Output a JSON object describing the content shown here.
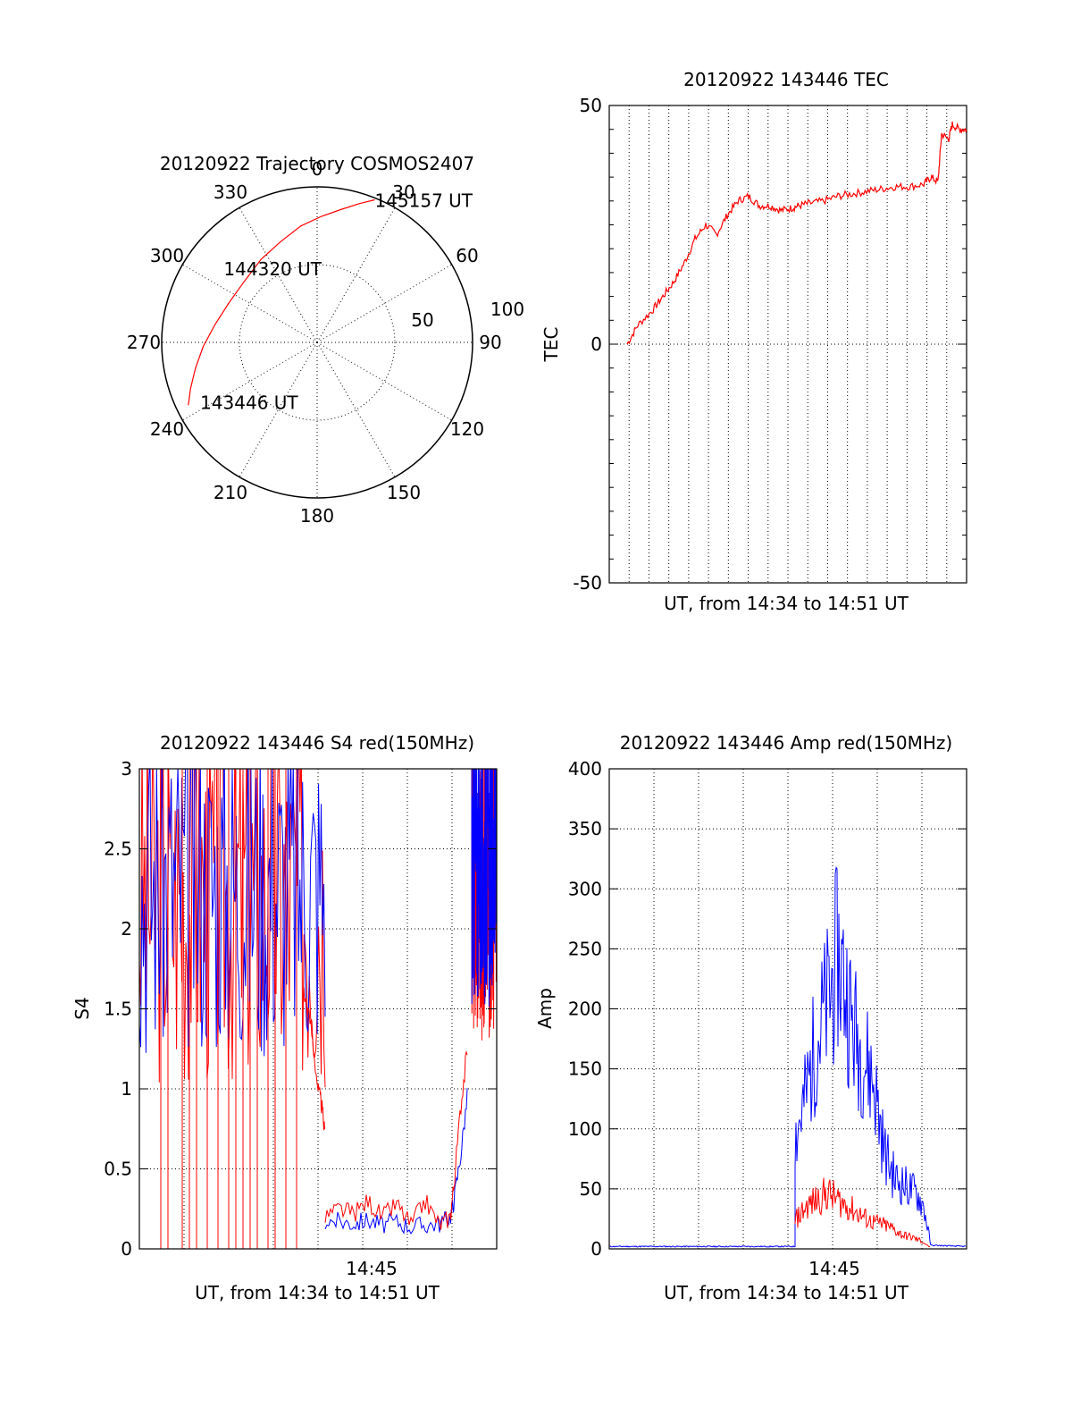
{
  "colors": {
    "red": "#ff0000",
    "blue": "#0000ff",
    "axis": "#000000"
  },
  "chart_data": [
    {
      "type": "polar",
      "title": "20120922 Trajectory COSMOS2407",
      "angle_labels": [
        "0",
        "30",
        "60",
        "90",
        "120",
        "150",
        "180",
        "210",
        "240",
        "270",
        "300",
        "330"
      ],
      "ring_labels": [
        "50",
        "100"
      ],
      "series": [
        {
          "color": "#ff0000",
          "points": [
            {
              "az": 244,
              "zen": 83
            },
            {
              "az": 250,
              "zen": 78
            },
            {
              "az": 258,
              "zen": 72
            },
            {
              "az": 268,
              "zen": 66
            },
            {
              "az": 280,
              "zen": 60
            },
            {
              "az": 294,
              "zen": 56
            },
            {
              "az": 310,
              "zen": 55
            },
            {
              "az": 326,
              "zen": 58
            },
            {
              "az": 340,
              "zen": 62
            },
            {
              "az": 352,
              "zen": 68
            },
            {
              "az": 2,
              "zen": 73
            },
            {
              "az": 10,
              "zen": 78
            },
            {
              "az": 17,
              "zen": 84
            },
            {
              "az": 22,
              "zen": 89
            }
          ]
        }
      ],
      "annotations": [
        {
          "text": "145157 UT",
          "az": 22,
          "zen": 89
        },
        {
          "text": "144320 UT",
          "az": 329,
          "zen": 50
        },
        {
          "text": "143446 UT",
          "az": 243,
          "zen": 76
        }
      ]
    },
    {
      "type": "line",
      "title": "20120922 143446 TEC",
      "xlabel": "UT, from 14:34 to 14:51 UT",
      "ylabel": "TEC",
      "xlim": [
        0,
        1
      ],
      "ylim": [
        -50,
        50
      ],
      "yticks": [
        -50,
        0,
        50
      ],
      "xgrid_count": 18,
      "series": [
        {
          "color": "#ff0000",
          "x": [
            0.05,
            0.08,
            0.12,
            0.15,
            0.18,
            0.21,
            0.24,
            0.27,
            0.3,
            0.33,
            0.36,
            0.39,
            0.42,
            0.45,
            0.48,
            0.51,
            0.53,
            0.56,
            0.6,
            0.64,
            0.68,
            0.72,
            0.76,
            0.8,
            0.84,
            0.88,
            0.9,
            0.92,
            0.93,
            0.95,
            0.96,
            0.98,
            1.0
          ],
          "y": [
            0,
            4,
            7,
            10,
            13,
            17,
            22,
            25,
            23,
            27,
            30,
            31,
            29,
            29,
            28,
            28.5,
            29,
            29.5,
            30,
            31,
            31.5,
            32,
            32.5,
            33,
            33,
            33.5,
            35,
            34,
            44,
            43,
            46,
            45,
            45
          ]
        }
      ]
    },
    {
      "type": "line",
      "title": "20120922 143446 S4 red(150MHz)",
      "xlabel": "UT, from 14:34 to 14:51 UT",
      "ylabel": "S4",
      "xtick_label": "14:45",
      "xtick_pos": 0.65,
      "ylim": [
        0,
        3
      ],
      "yticks": [
        "0",
        "0.5",
        "1",
        "1.5",
        "2",
        "2.5",
        "3"
      ],
      "segments": [
        {
          "color": "#ff0000",
          "band": {
            "x0": 0.0,
            "x1": 0.52,
            "lo": 1.0,
            "hi": 3.0
          }
        },
        {
          "color": "#0000ff",
          "band": {
            "x0": 0.0,
            "x1": 0.52,
            "lo": 1.2,
            "hi": 3.0
          }
        },
        {
          "color": "#ff0000",
          "x": [
            0.46,
            0.48,
            0.5,
            0.51,
            0.52
          ],
          "y": [
            1.6,
            1.4,
            1.0,
            0.9,
            0.7
          ]
        },
        {
          "color": "#0000ff",
          "x": [
            0.52,
            0.56,
            0.6,
            0.64,
            0.68,
            0.72,
            0.76,
            0.8,
            0.84,
            0.87,
            0.88,
            0.9,
            0.92
          ],
          "y": [
            0.18,
            0.17,
            0.16,
            0.18,
            0.15,
            0.17,
            0.14,
            0.15,
            0.16,
            0.2,
            0.3,
            0.6,
            1.0
          ]
        },
        {
          "color": "#ff0000",
          "x": [
            0.52,
            0.56,
            0.6,
            0.64,
            0.68,
            0.72,
            0.76,
            0.8,
            0.84,
            0.87,
            0.88,
            0.9,
            0.92
          ],
          "y": [
            0.2,
            0.25,
            0.22,
            0.3,
            0.2,
            0.28,
            0.15,
            0.3,
            0.15,
            0.2,
            0.4,
            0.9,
            1.3
          ]
        },
        {
          "color": "#ff0000",
          "band": {
            "x0": 0.93,
            "x1": 1.0,
            "lo": 1.3,
            "hi": 3.0
          }
        },
        {
          "color": "#0000ff",
          "band": {
            "x0": 0.93,
            "x1": 1.0,
            "lo": 1.5,
            "hi": 3.0
          }
        }
      ],
      "red_spikes_x": [
        0.06,
        0.08,
        0.12,
        0.14,
        0.16,
        0.19,
        0.22,
        0.25,
        0.27,
        0.29,
        0.31,
        0.33,
        0.36,
        0.38,
        0.41,
        0.44
      ]
    },
    {
      "type": "line",
      "title": "20120922 143446 Amp red(150MHz)",
      "xlabel": "UT, from 14:34 to 14:51 UT",
      "ylabel": "Amp",
      "xtick_label": "14:45",
      "xtick_pos": 0.63,
      "ylim": [
        0,
        400
      ],
      "yticks": [
        "0",
        "50",
        "100",
        "150",
        "200",
        "250",
        "300",
        "350",
        "400"
      ],
      "series": [
        {
          "color": "#0000ff",
          "x": [
            0.0,
            0.52,
            0.52,
            0.55,
            0.58,
            0.61,
            0.64,
            0.66,
            0.68,
            0.71,
            0.74,
            0.77,
            0.8,
            0.83,
            0.86,
            0.88,
            0.9,
            1.0
          ],
          "y": [
            2,
            2,
            80,
            110,
            150,
            175,
            210,
            190,
            160,
            140,
            120,
            70,
            50,
            45,
            40,
            30,
            3,
            2
          ]
        },
        {
          "color": "#ff0000",
          "x": [
            0.52,
            0.55,
            0.58,
            0.61,
            0.64,
            0.67,
            0.7,
            0.73,
            0.76,
            0.79,
            0.82,
            0.85,
            0.88,
            0.9
          ],
          "y": [
            20,
            30,
            35,
            40,
            35,
            30,
            25,
            20,
            18,
            15,
            10,
            8,
            5,
            1
          ]
        }
      ]
    }
  ]
}
